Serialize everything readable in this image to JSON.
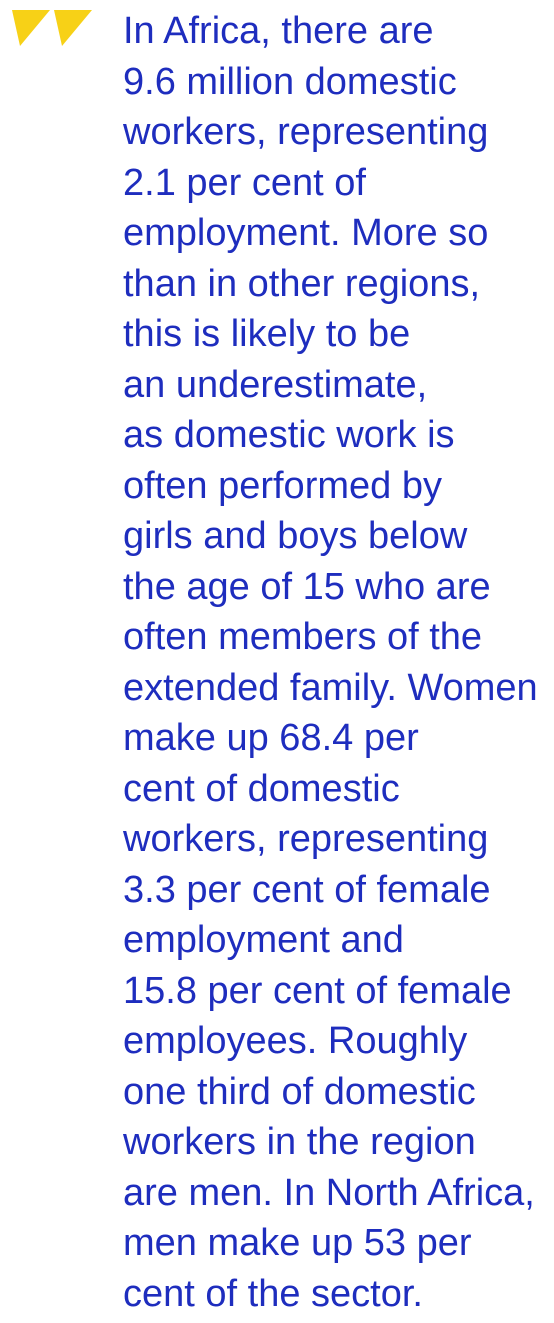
{
  "quote": {
    "lines": [
      "In Africa, there are",
      "9.6 million domestic",
      "workers, representing",
      "2.1 per cent of",
      "employment. More so",
      "than in other regions,",
      "this is likely to be",
      "an underestimate,",
      "as domestic work is",
      "often performed by",
      "girls and boys below",
      "the age of 15 who are",
      "often members of the",
      "extended family. Women",
      "make up 68.4 per",
      "cent of domestic",
      "workers, representing",
      "3.3 per cent of female",
      "employment and",
      "15.8 per cent of female",
      "employees. Roughly",
      "one third of domestic",
      "workers in the region",
      "are men. In North Africa,",
      "men make up 53 per",
      "cent of the sector."
    ]
  }
}
